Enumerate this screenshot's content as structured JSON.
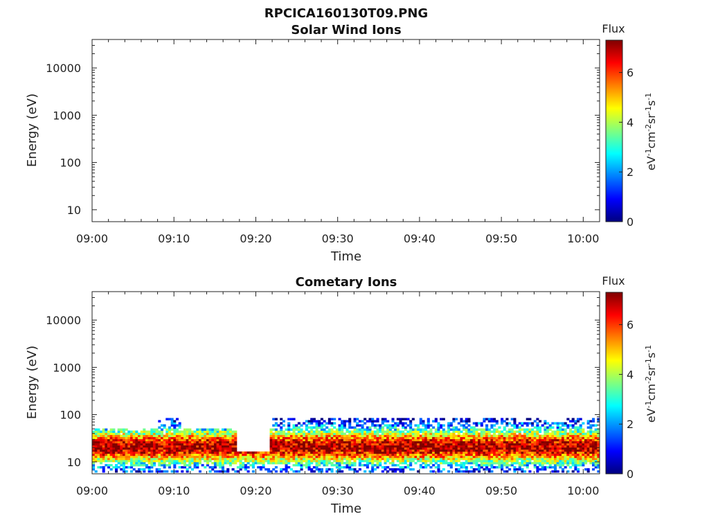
{
  "figure_title": "RPCICA160130T09.PNG",
  "chart_data": [
    {
      "type": "heatmap",
      "title": "Solar Wind Ions",
      "xlabel": "Time",
      "ylabel": "Energy (eV)",
      "x_ticks": [
        "09:00",
        "09:10",
        "09:20",
        "09:30",
        "09:40",
        "09:50",
        "10:00"
      ],
      "x_range_minutes": [
        0,
        62
      ],
      "y_scale": "log",
      "y_ticks": [
        "10",
        "100",
        "1000",
        "10000"
      ],
      "y_range": [
        5.6,
        40000
      ],
      "colorbar": {
        "title": "Flux",
        "label": "eV-1cm-2sr-1s-1",
        "ticks": [
          "0",
          "2",
          "4",
          "6"
        ],
        "range": [
          0,
          7.3
        ],
        "colormap": "jet"
      },
      "data_present": false
    },
    {
      "type": "heatmap",
      "title": "Cometary Ions",
      "xlabel": "Time",
      "ylabel": "Energy (eV)",
      "x_ticks": [
        "09:00",
        "09:10",
        "09:20",
        "09:30",
        "09:40",
        "09:50",
        "10:00"
      ],
      "x_range_minutes": [
        0,
        62
      ],
      "y_scale": "log",
      "y_ticks": [
        "10",
        "100",
        "1000",
        "10000"
      ],
      "y_range": [
        5.6,
        40000
      ],
      "colorbar": {
        "title": "Flux",
        "label": "eV-1cm-2sr-1s-1",
        "ticks": [
          "0",
          "2",
          "4",
          "6"
        ],
        "range": [
          0,
          7.3
        ],
        "colormap": "jet"
      },
      "data_present": true,
      "energy_band_eV": [
        6,
        85
      ],
      "peak_energy_eV": 20,
      "peak_flux": 7
    }
  ]
}
